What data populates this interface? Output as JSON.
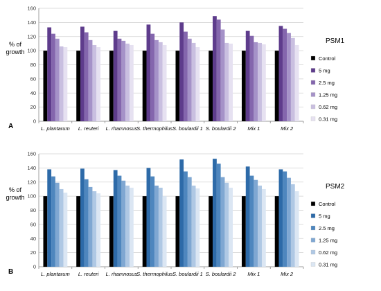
{
  "chart_data": [
    {
      "type": "bar",
      "panel_label": "A",
      "title": "PSM1",
      "ylabel_line1": "% of",
      "ylabel_line2": "growth",
      "ylim": [
        0,
        160
      ],
      "yticks": [
        0,
        20,
        40,
        60,
        80,
        100,
        120,
        140,
        160
      ],
      "grid": true,
      "legend_position": "right",
      "categories": [
        "L. plantarum",
        "L. reuteri",
        "L. rhamnosus",
        "S. thermophilus",
        "S. boulardii 1",
        "S. boulardii 2",
        "Mix 1",
        "Mix 2"
      ],
      "series": [
        {
          "name": "Control",
          "color": "#000000",
          "values": [
            100,
            100,
            100,
            100,
            100,
            100,
            100,
            100
          ]
        },
        {
          "name": "5 mg",
          "color": "#5e3c8c",
          "values": [
            133,
            134,
            128,
            137,
            140,
            149,
            128,
            135
          ]
        },
        {
          "name": "2.5 mg",
          "color": "#8466ad",
          "values": [
            124,
            126,
            117,
            124,
            127,
            144,
            121,
            131
          ]
        },
        {
          "name": "1.25 mg",
          "color": "#a592c8",
          "values": [
            117,
            115,
            114,
            115,
            117,
            130,
            112,
            125
          ]
        },
        {
          "name": "0.62 mg",
          "color": "#c9bfe0",
          "values": [
            106,
            108,
            110,
            112,
            111,
            111,
            111,
            118
          ]
        },
        {
          "name": "0.31 mg",
          "color": "#e6e1f1",
          "values": [
            105,
            105,
            108,
            108,
            105,
            110,
            109,
            108
          ]
        }
      ]
    },
    {
      "type": "bar",
      "panel_label": "B",
      "title": "PSM2",
      "ylabel_line1": "% of",
      "ylabel_line2": "growth",
      "ylim": [
        0,
        160
      ],
      "yticks": [
        0,
        20,
        40,
        60,
        80,
        100,
        120,
        140,
        160
      ],
      "grid": true,
      "legend_position": "right",
      "categories": [
        "L. plantarum",
        "L. reuteri",
        "L. rhamnosus",
        "S. thermophilus",
        "S. boulardii 1",
        "S. boulardii 2",
        "Mix 1",
        "Mix 2"
      ],
      "series": [
        {
          "name": "Control",
          "color": "#000000",
          "values": [
            100,
            100,
            100,
            100,
            100,
            100,
            100,
            100
          ]
        },
        {
          "name": "5 mg",
          "color": "#2d6aa8",
          "values": [
            138,
            139,
            137,
            140,
            152,
            153,
            142,
            138
          ]
        },
        {
          "name": "2.5 mg",
          "color": "#4e86be",
          "values": [
            128,
            124,
            129,
            128,
            135,
            146,
            129,
            135
          ]
        },
        {
          "name": "1.25 mg",
          "color": "#7fa7d2",
          "values": [
            119,
            113,
            122,
            115,
            127,
            127,
            123,
            126
          ]
        },
        {
          "name": "0.62 mg",
          "color": "#afc8e4",
          "values": [
            110,
            107,
            115,
            112,
            115,
            119,
            115,
            117
          ]
        },
        {
          "name": "0.31 mg",
          "color": "#dbe6f3",
          "values": [
            105,
            104,
            112,
            100,
            111,
            112,
            110,
            107
          ]
        }
      ]
    }
  ]
}
